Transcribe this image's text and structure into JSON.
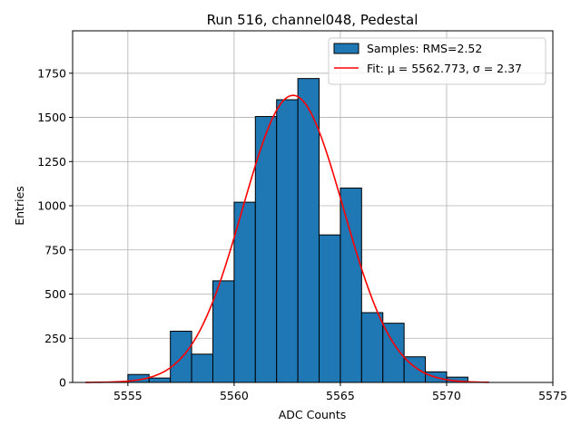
{
  "chart_data": {
    "type": "bar",
    "title": "Run 516, channel048, Pedestal",
    "xlabel": "ADC Counts",
    "ylabel": "Entries",
    "xlim": [
      5552.4,
      5575
    ],
    "ylim": [
      0,
      1990
    ],
    "xticks": [
      5555,
      5560,
      5565,
      5570,
      5575
    ],
    "yticks": [
      0,
      250,
      500,
      750,
      1000,
      1250,
      1500,
      1750
    ],
    "grid": true,
    "legend_position": "top-right",
    "bin_width": 1,
    "bins": [
      {
        "x": 5555,
        "count": 45
      },
      {
        "x": 5556,
        "count": 25
      },
      {
        "x": 5557,
        "count": 290
      },
      {
        "x": 5558,
        "count": 160
      },
      {
        "x": 5559,
        "count": 575
      },
      {
        "x": 5560,
        "count": 1020
      },
      {
        "x": 5561,
        "count": 1505
      },
      {
        "x": 5562,
        "count": 1600
      },
      {
        "x": 5563,
        "count": 1720
      },
      {
        "x": 5564,
        "count": 835
      },
      {
        "x": 5565,
        "count": 1100
      },
      {
        "x": 5566,
        "count": 395
      },
      {
        "x": 5567,
        "count": 335
      },
      {
        "x": 5568,
        "count": 145
      },
      {
        "x": 5569,
        "count": 60
      },
      {
        "x": 5570,
        "count": 30
      }
    ],
    "fit": {
      "mu": 5562.773,
      "sigma": 2.37,
      "amplitude": 1625,
      "x_range": [
        5553,
        5572
      ]
    },
    "series": [
      {
        "name": "Samples: RMS=2.52",
        "color": "#1f77b4",
        "kind": "histogram"
      },
      {
        "name": "Fit: μ = 5562.773, σ = 2.37",
        "color": "#ff0000",
        "kind": "line"
      }
    ]
  }
}
